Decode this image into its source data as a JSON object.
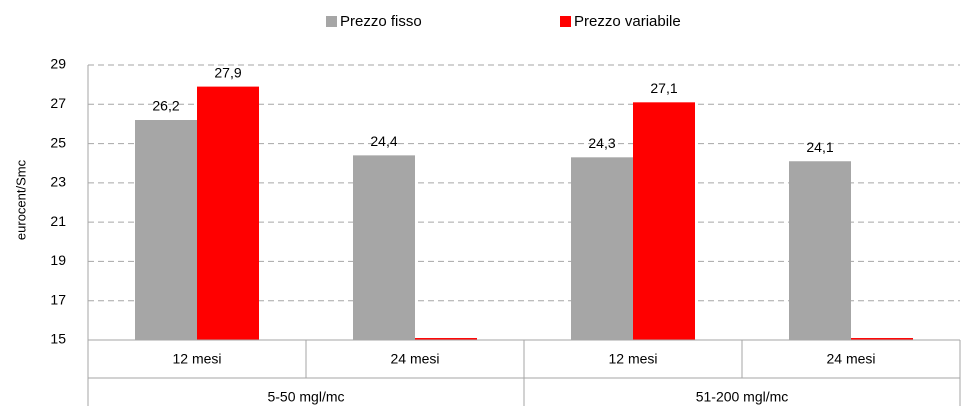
{
  "chart_data": {
    "type": "bar",
    "y_label": "eurocent/Smc",
    "categories": [
      "12 mesi",
      "24 mesi",
      "12 mesi",
      "24 mesi"
    ],
    "category_groups": [
      "5-50 mgl/mc",
      "51-200 mgl/mc"
    ],
    "series": [
      {
        "name": "Prezzo fisso",
        "color": "#a6a6a6",
        "values": [
          26.2,
          24.4,
          24.3,
          24.1
        ],
        "value_labels": [
          "26,2",
          "24,4",
          "24,3",
          "24,1"
        ]
      },
      {
        "name": "Prezzo variabile",
        "color": "#ff0000",
        "values": [
          27.9,
          15.1,
          27.1,
          15.1
        ],
        "value_labels": [
          "27,9",
          null,
          "27,1",
          null
        ]
      }
    ],
    "ylim": [
      15,
      29
    ],
    "yticks": [
      15,
      17,
      19,
      21,
      23,
      25,
      27,
      29
    ],
    "grid": true
  }
}
